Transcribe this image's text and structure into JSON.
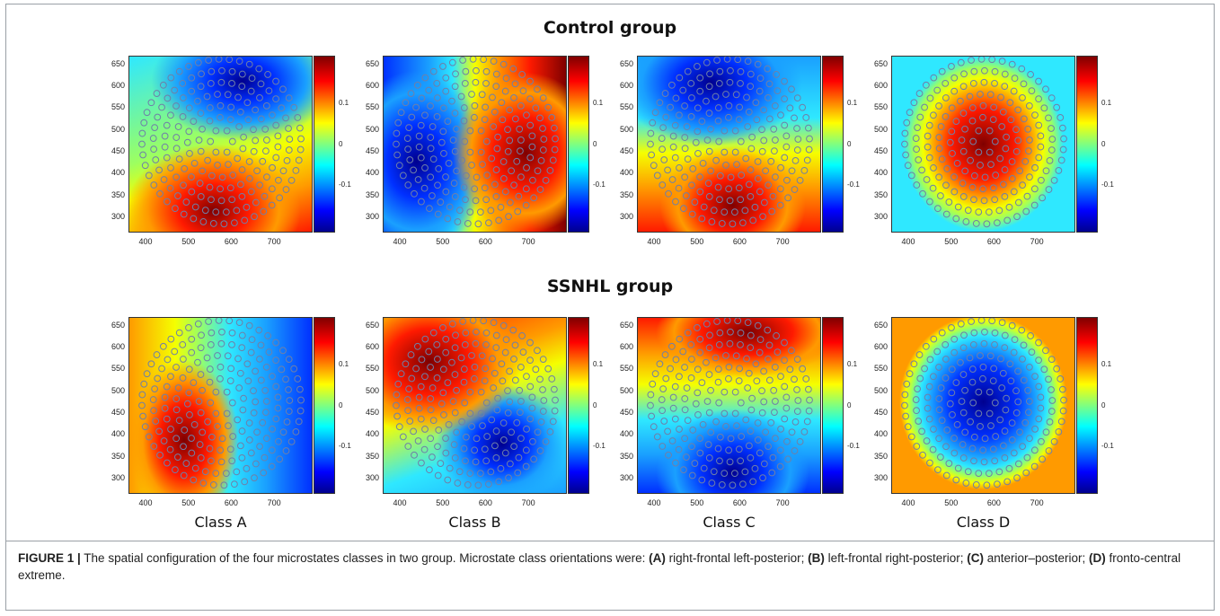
{
  "rows": [
    {
      "title": "Control group",
      "panels": [
        {
          "class": "A",
          "pattern": "A_ctrl"
        },
        {
          "class": "B",
          "pattern": "B_ctrl"
        },
        {
          "class": "C",
          "pattern": "C_ctrl"
        },
        {
          "class": "D",
          "pattern": "D_ctrl"
        }
      ]
    },
    {
      "title": "SSNHL group",
      "panels": [
        {
          "class": "A",
          "pattern": "A_ssnhl"
        },
        {
          "class": "B",
          "pattern": "B_ssnhl"
        },
        {
          "class": "C",
          "pattern": "C_ssnhl"
        },
        {
          "class": "D",
          "pattern": "D_ssnhl"
        }
      ]
    }
  ],
  "class_labels": [
    "Class A",
    "Class B",
    "Class C",
    "Class D"
  ],
  "chart_data": {
    "type": "heatmap",
    "description_of_panels": "8 scalp topographic maps (2 groups x 4 microstate classes) with jet colormap",
    "x_ticks": [
      "400",
      "500",
      "600",
      "700"
    ],
    "y_ticks": [
      "650",
      "600",
      "550",
      "500",
      "450",
      "400",
      "350",
      "300"
    ],
    "xlim": [
      360,
      790
    ],
    "ylim": [
      265,
      670
    ],
    "colorbar_ticks": [
      "0.1",
      "0",
      "-0.1"
    ],
    "colormap": "jet",
    "groups": [
      "Control group",
      "SSNHL group"
    ],
    "classes": [
      "Class A",
      "Class B",
      "Class C",
      "Class D"
    ]
  },
  "caption": {
    "label": "FIGURE 1 |",
    "text1": " The spatial configuration of the four microstates classes in two group. Microstate class orientations were: ",
    "a": "(A)",
    "ta": " right-frontal left-posterior; ",
    "b": "(B)",
    "tb": " left-frontal right-posterior; ",
    "c": "(C)",
    "tc": " anterior–posterior; ",
    "d": "(D)",
    "td": " fronto-central extreme."
  }
}
